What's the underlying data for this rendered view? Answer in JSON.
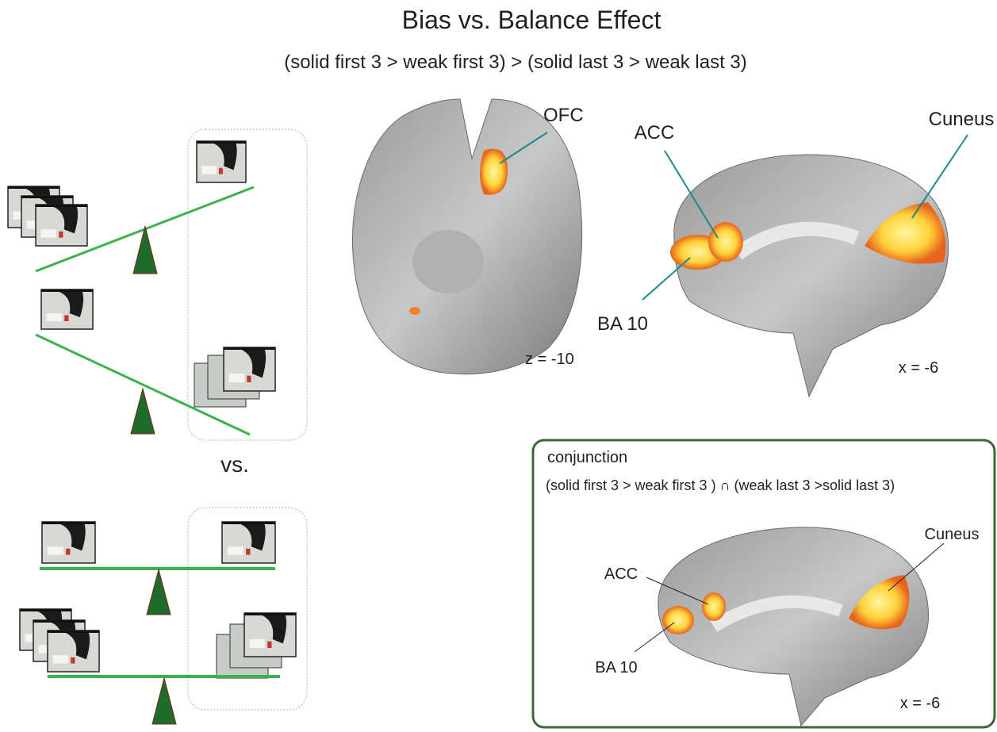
{
  "header": {
    "title": "Bias vs. Balance Effect",
    "subtitle": "(solid first 3 > weak first 3) > (solid last 3 > weak last 3)"
  },
  "left_panel": {
    "separator": "vs."
  },
  "axial_brain": {
    "label": "OFC",
    "coordinate": "z = -10"
  },
  "sagittal_brain": {
    "labels": [
      "ACC",
      "Cuneus",
      "BA 10"
    ],
    "coordinate": "x = -6"
  },
  "conjunction": {
    "heading": "conjunction",
    "formula": "(solid first 3 > weak first 3 ) ∩ (weak last 3 >solid last 3)",
    "labels": [
      "ACC",
      "Cuneus",
      "BA 10"
    ],
    "coordinate": "x = -6"
  }
}
